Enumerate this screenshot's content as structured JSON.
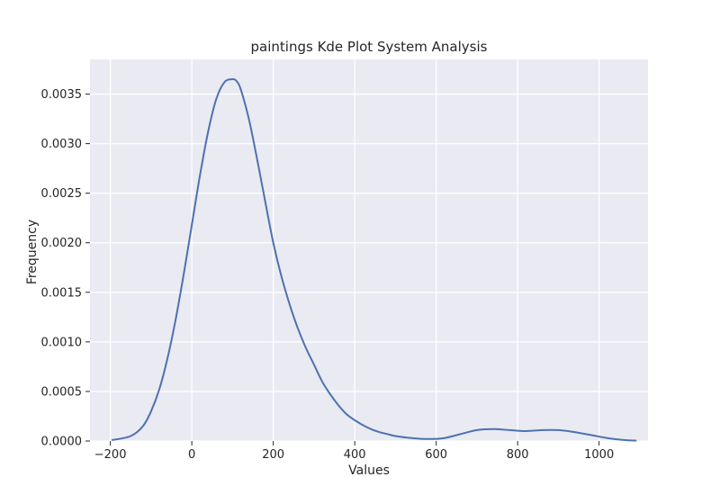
{
  "chart_data": {
    "type": "line",
    "title": "paintings Kde Plot System Analysis",
    "xlabel": "Values",
    "ylabel": "Frequency",
    "xlim": [
      -250,
      1120
    ],
    "ylim": [
      0,
      0.00385
    ],
    "grid": true,
    "x_ticks": [
      -200,
      0,
      200,
      400,
      600,
      800,
      1000
    ],
    "x_tick_labels": [
      "−200",
      "0",
      "200",
      "400",
      "600",
      "800",
      "1000"
    ],
    "y_ticks": [
      0,
      0.0005,
      0.001,
      0.0015,
      0.002,
      0.0025,
      0.003,
      0.0035
    ],
    "y_tick_labels": [
      "0.0000",
      "0.0005",
      "0.0010",
      "0.0015",
      "0.0020",
      "0.0025",
      "0.0030",
      "0.0035"
    ],
    "series": [
      {
        "color": "#4c72b0",
        "x": [
          -195,
          -150,
          -120,
          -100,
          -80,
          -60,
          -40,
          -20,
          0,
          20,
          40,
          60,
          80,
          100,
          110,
          120,
          140,
          160,
          180,
          200,
          220,
          240,
          260,
          280,
          300,
          320,
          340,
          360,
          380,
          400,
          420,
          440,
          460,
          480,
          500,
          540,
          580,
          620,
          660,
          700,
          740,
          780,
          820,
          860,
          900,
          940,
          980,
          1020,
          1060,
          1090
        ],
        "y": [
          1e-05,
          5e-05,
          0.00015,
          0.0003,
          0.00052,
          0.00083,
          0.00122,
          0.00168,
          0.00218,
          0.00268,
          0.00312,
          0.00345,
          0.00362,
          0.00365,
          0.00363,
          0.00355,
          0.00325,
          0.00285,
          0.00242,
          0.002,
          0.00166,
          0.00138,
          0.00114,
          0.00094,
          0.00077,
          0.0006,
          0.00047,
          0.00036,
          0.00027,
          0.00021,
          0.00016,
          0.00012,
          9e-05,
          7e-05,
          5e-05,
          3e-05,
          2e-05,
          3e-05,
          7e-05,
          0.00011,
          0.00012,
          0.00011,
          0.0001,
          0.00011,
          0.00011,
          9e-05,
          6e-05,
          3e-05,
          1e-05,
          4e-06
        ]
      }
    ]
  }
}
